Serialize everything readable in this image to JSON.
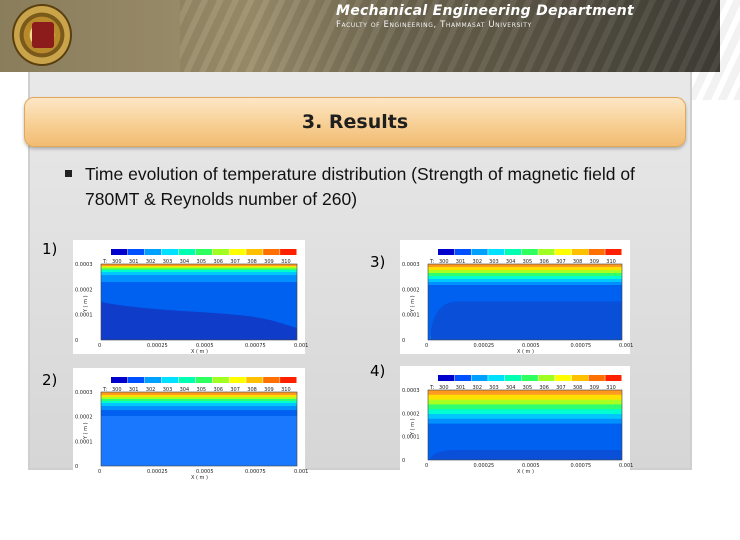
{
  "header": {
    "title": "Mechanical Engineering Department",
    "subtitle": "Faculty of Engineering, Thammasat University",
    "logo_icon": "university-seal-icon"
  },
  "slide": {
    "title": "3. Results",
    "bullet": "Time evolution of temperature distribution (Strength of magnetic field of  780MT & Reynolds number of 260)"
  },
  "colors": {
    "title_bar_top": "#fde7c6",
    "title_bar_bottom": "#f1bc72",
    "contour_scale": [
      "#0000cc",
      "#0050ff",
      "#00a0ff",
      "#00e0ff",
      "#00ffb0",
      "#30ff60",
      "#a0ff20",
      "#ffff00",
      "#ffc000",
      "#ff7000",
      "#ff2000"
    ]
  },
  "plots": [
    {
      "label": "1)",
      "legend_prefix": "T:",
      "legend_values": [
        "300",
        "301",
        "302",
        "303",
        "304",
        "305",
        "306",
        "307",
        "308",
        "309",
        "310"
      ],
      "y_ticks": [
        "0.0003",
        "0.0002",
        "0.0001",
        "0"
      ],
      "x_ticks": [
        "0",
        "0.00025",
        "0.0005",
        "0.00075",
        "0.001"
      ],
      "x_label": "X ( m )",
      "y_label": "Y ( m )"
    },
    {
      "label": "2)",
      "legend_prefix": "T:",
      "legend_values": [
        "300",
        "301",
        "302",
        "303",
        "304",
        "305",
        "306",
        "307",
        "308",
        "309",
        "310"
      ],
      "y_ticks": [
        "0.0003",
        "0.0002",
        "0.0001",
        "0"
      ],
      "x_ticks": [
        "0",
        "0.00025",
        "0.0005",
        "0.00075",
        "0.001"
      ],
      "x_label": "X ( m )",
      "y_label": "Y ( m )"
    },
    {
      "label": "3)",
      "legend_prefix": "T:",
      "legend_values": [
        "300",
        "301",
        "302",
        "303",
        "304",
        "305",
        "306",
        "307",
        "308",
        "309",
        "310"
      ],
      "y_ticks": [
        "0.0003",
        "0.0002",
        "0.0001",
        "0"
      ],
      "x_ticks": [
        "0",
        "0.00025",
        "0.0005",
        "0.00075",
        "0.001"
      ],
      "x_label": "X ( m )",
      "y_label": "Y ( m )"
    },
    {
      "label": "4)",
      "legend_prefix": "T:",
      "legend_values": [
        "300",
        "301",
        "302",
        "303",
        "304",
        "305",
        "306",
        "307",
        "308",
        "309",
        "310"
      ],
      "y_ticks": [
        "0.0003",
        "0.0002",
        "0.0001",
        "0"
      ],
      "x_ticks": [
        "0",
        "0.00025",
        "0.0005",
        "0.00075",
        "0.001"
      ],
      "x_label": "X ( m )",
      "y_label": "Y ( m )"
    }
  ]
}
